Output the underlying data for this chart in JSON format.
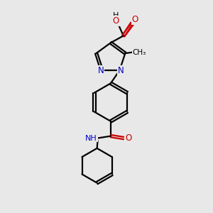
{
  "bg_color": "#e8e8e8",
  "bond_color": "#000000",
  "nitrogen_color": "#0000cc",
  "oxygen_color": "#cc0000",
  "line_width": 1.6,
  "figsize": [
    3.0,
    3.0
  ],
  "dpi": 100,
  "xlim": [
    0,
    10
  ],
  "ylim": [
    0,
    10
  ]
}
